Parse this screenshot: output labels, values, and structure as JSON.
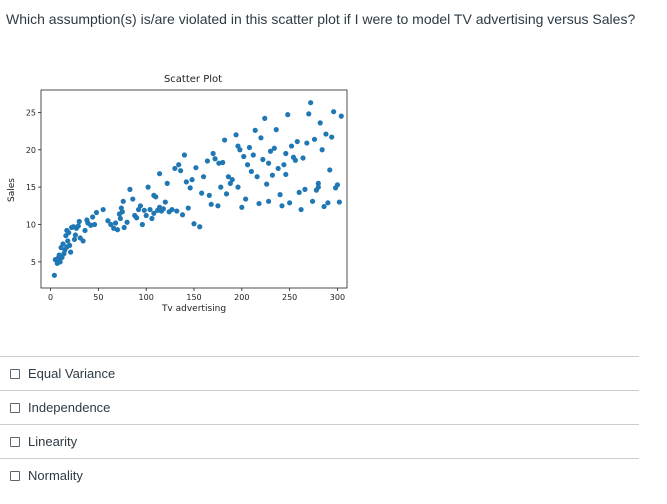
{
  "question": {
    "text": "Which assumption(s) is/are violated in this scatter plot if I were to model TV advertising versus Sales?"
  },
  "options": [
    {
      "label": "Equal Variance",
      "checked": false
    },
    {
      "label": "Independence",
      "checked": false
    },
    {
      "label": "Linearity",
      "checked": false
    },
    {
      "label": "Normality",
      "checked": false
    }
  ],
  "chart_data": {
    "type": "scatter",
    "title": "Scatter Plot",
    "xlabel": "Tv advertising",
    "ylabel": "Sales",
    "xlim": [
      -10,
      310
    ],
    "ylim": [
      1.5,
      28
    ],
    "xticks": [
      0,
      50,
      100,
      150,
      200,
      250,
      300
    ],
    "yticks": [
      5,
      10,
      15,
      20,
      25
    ],
    "grid": false,
    "color": "#1f77b4",
    "points": [
      [
        4,
        3.2
      ],
      [
        5,
        5.3
      ],
      [
        7,
        4.8
      ],
      [
        8,
        5.5
      ],
      [
        9,
        5.9
      ],
      [
        10,
        5.0
      ],
      [
        11,
        6.9
      ],
      [
        12,
        5.6
      ],
      [
        13,
        7.4
      ],
      [
        14,
        6.1
      ],
      [
        15,
        6.6
      ],
      [
        16,
        8.5
      ],
      [
        17,
        9.2
      ],
      [
        17,
        7.0
      ],
      [
        18,
        7.8
      ],
      [
        19,
        8.9
      ],
      [
        20,
        7.2
      ],
      [
        22,
        9.6
      ],
      [
        24,
        9.7
      ],
      [
        25,
        8.0
      ],
      [
        27,
        9.5
      ],
      [
        29,
        9.8
      ],
      [
        31,
        8.2
      ],
      [
        34,
        7.8
      ],
      [
        38,
        10.6
      ],
      [
        39,
        10.2
      ],
      [
        42,
        9.9
      ],
      [
        44,
        11.0
      ],
      [
        48,
        11.6
      ],
      [
        55,
        12.0
      ],
      [
        63,
        10.0
      ],
      [
        66,
        9.5
      ],
      [
        68,
        10.2
      ],
      [
        70,
        9.3
      ],
      [
        72,
        11.4
      ],
      [
        73,
        10.8
      ],
      [
        74,
        12.2
      ],
      [
        75,
        11.7
      ],
      [
        76,
        13.1
      ],
      [
        77,
        9.6
      ],
      [
        80,
        10.3
      ],
      [
        83,
        14.7
      ],
      [
        86,
        13.4
      ],
      [
        88,
        11.2
      ],
      [
        90,
        10.9
      ],
      [
        94,
        12.5
      ],
      [
        96,
        10.0
      ],
      [
        98,
        11.9
      ],
      [
        100,
        11.2
      ],
      [
        102,
        15.0
      ],
      [
        104,
        12.0
      ],
      [
        106,
        10.8
      ],
      [
        108,
        11.5
      ],
      [
        110,
        13.7
      ],
      [
        112,
        11.9
      ],
      [
        114,
        16.8
      ],
      [
        114,
        12.3
      ],
      [
        116,
        11.8
      ],
      [
        118,
        12.1
      ],
      [
        122,
        15.5
      ],
      [
        124,
        11.7
      ],
      [
        127,
        12.0
      ],
      [
        130,
        17.5
      ],
      [
        132,
        11.8
      ],
      [
        134,
        18.0
      ],
      [
        136,
        17.2
      ],
      [
        138,
        11.3
      ],
      [
        140,
        19.3
      ],
      [
        142,
        15.7
      ],
      [
        144,
        12.2
      ],
      [
        146,
        14.9
      ],
      [
        148,
        16.0
      ],
      [
        150,
        10.1
      ],
      [
        152,
        17.6
      ],
      [
        156,
        9.7
      ],
      [
        160,
        16.4
      ],
      [
        164,
        18.5
      ],
      [
        166,
        13.9
      ],
      [
        168,
        12.7
      ],
      [
        170,
        19.5
      ],
      [
        172,
        18.8
      ],
      [
        175,
        12.5
      ],
      [
        176,
        18.2
      ],
      [
        178,
        15.0
      ],
      [
        180,
        18.3
      ],
      [
        182,
        21.3
      ],
      [
        184,
        14.1
      ],
      [
        186,
        16.4
      ],
      [
        188,
        15.5
      ],
      [
        190,
        16.0
      ],
      [
        194,
        22.0
      ],
      [
        196,
        15.0
      ],
      [
        198,
        20.0
      ],
      [
        200,
        12.3
      ],
      [
        202,
        19.1
      ],
      [
        204,
        13.4
      ],
      [
        206,
        18.0
      ],
      [
        208,
        20.3
      ],
      [
        210,
        17.1
      ],
      [
        212,
        19.3
      ],
      [
        214,
        22.6
      ],
      [
        216,
        16.4
      ],
      [
        218,
        12.8
      ],
      [
        220,
        21.6
      ],
      [
        222,
        18.7
      ],
      [
        224,
        24.2
      ],
      [
        226,
        15.4
      ],
      [
        228,
        13.1
      ],
      [
        230,
        19.8
      ],
      [
        232,
        16.6
      ],
      [
        234,
        20.2
      ],
      [
        236,
        22.7
      ],
      [
        238,
        17.5
      ],
      [
        240,
        14.0
      ],
      [
        242,
        12.5
      ],
      [
        244,
        18.0
      ],
      [
        246,
        19.5
      ],
      [
        248,
        24.7
      ],
      [
        250,
        12.9
      ],
      [
        252,
        20.5
      ],
      [
        254,
        19.0
      ],
      [
        256,
        18.6
      ],
      [
        258,
        21.1
      ],
      [
        262,
        12.0
      ],
      [
        264,
        18.9
      ],
      [
        268,
        20.9
      ],
      [
        270,
        24.8
      ],
      [
        272,
        26.3
      ],
      [
        274,
        13.1
      ],
      [
        276,
        21.4
      ],
      [
        278,
        14.6
      ],
      [
        280,
        15.5
      ],
      [
        282,
        23.6
      ],
      [
        284,
        20.0
      ],
      [
        286,
        12.4
      ],
      [
        288,
        22.1
      ],
      [
        290,
        12.9
      ],
      [
        292,
        17.3
      ],
      [
        294,
        21.7
      ],
      [
        296,
        25.1
      ],
      [
        298,
        14.9
      ],
      [
        300,
        15.3
      ],
      [
        302,
        13.0
      ],
      [
        304,
        24.5
      ],
      [
        280,
        15.0
      ],
      [
        260,
        14.3
      ],
      [
        196,
        20.5
      ],
      [
        228,
        18.2
      ],
      [
        246,
        16.7
      ],
      [
        266,
        14.7
      ],
      [
        158,
        14.2
      ],
      [
        120,
        13.0
      ],
      [
        92,
        12.0
      ],
      [
        60,
        10.5
      ],
      [
        36,
        9.2
      ],
      [
        26,
        8.6
      ],
      [
        21,
        6.3
      ],
      [
        30,
        10.4
      ],
      [
        46,
        10.0
      ],
      [
        108,
        13.9
      ]
    ]
  }
}
